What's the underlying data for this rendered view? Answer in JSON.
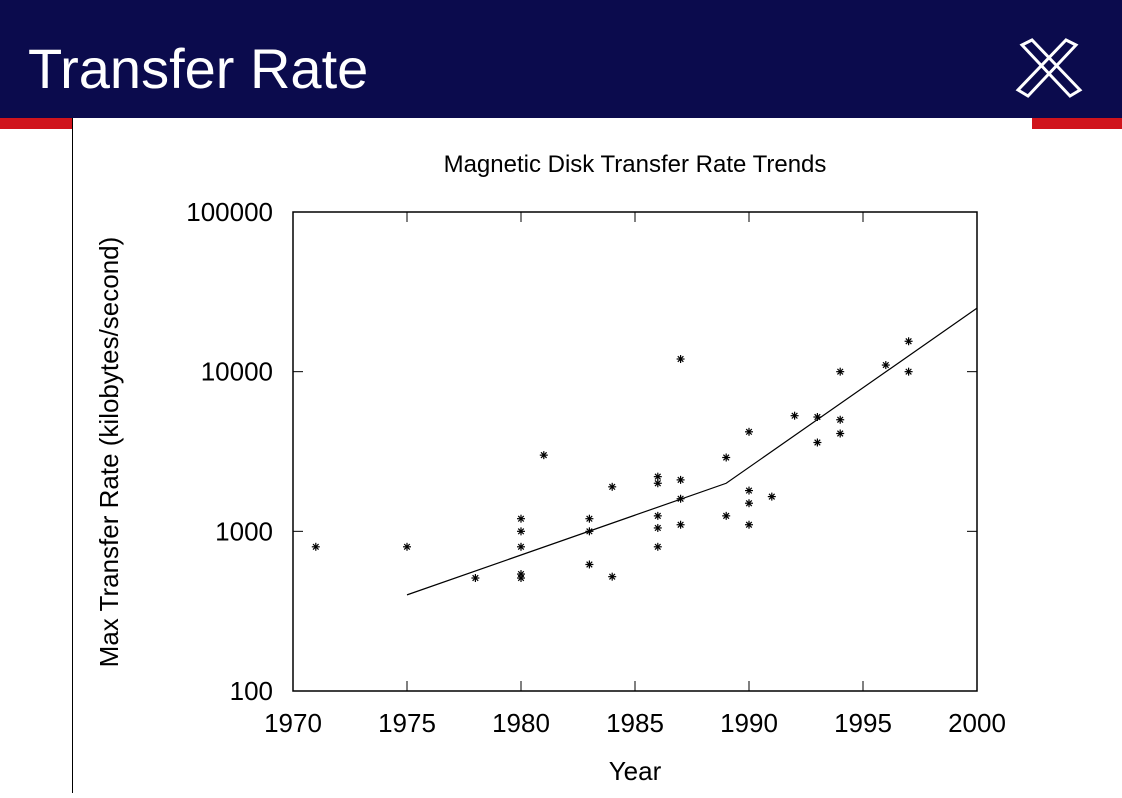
{
  "slide_title": "Transfer Rate",
  "chart_data": {
    "type": "scatter",
    "title": "Magnetic Disk Transfer Rate Trends",
    "xlabel": "Year",
    "ylabel": "Max Transfer Rate (kilobytes/second)",
    "xlim": [
      1970,
      2000
    ],
    "xticks": [
      1970,
      1975,
      1980,
      1985,
      1990,
      1995,
      2000
    ],
    "ylim": [
      100,
      100000
    ],
    "yticks": [
      100,
      1000,
      10000,
      100000
    ],
    "log_y": true,
    "color": "#000000",
    "series": [
      {
        "type": "scatter",
        "x": [
          1971,
          1975,
          1978,
          1980,
          1980,
          1980,
          1980,
          1980,
          1981,
          1983,
          1983,
          1983,
          1984,
          1984,
          1986,
          1986,
          1986,
          1986,
          1986,
          1987,
          1987,
          1987,
          1987,
          1989,
          1989,
          1990,
          1990,
          1990,
          1990,
          1991,
          1992,
          1993,
          1993,
          1994,
          1994,
          1994,
          1996,
          1997,
          1997
        ],
        "values": [
          800,
          800,
          510,
          1200,
          1000,
          800,
          540,
          510,
          3000,
          1200,
          1000,
          620,
          1900,
          520,
          2200,
          2000,
          1250,
          1050,
          800,
          12000,
          2100,
          1600,
          1100,
          2900,
          1250,
          4200,
          1800,
          1500,
          1100,
          1650,
          5300,
          5200,
          3600,
          10000,
          5000,
          4100,
          11000,
          15500,
          10000
        ]
      },
      {
        "type": "line",
        "x": [
          1975,
          1989,
          2000
        ],
        "values": [
          400,
          2000,
          25000
        ]
      }
    ]
  }
}
